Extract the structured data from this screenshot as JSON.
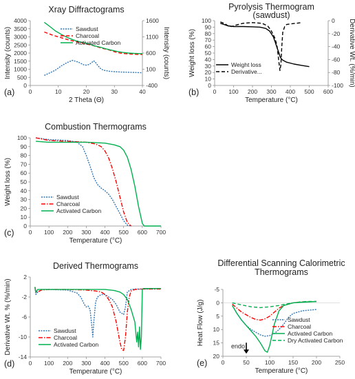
{
  "chart_data": [
    {
      "id": "a",
      "type": "line",
      "panel_label": "(a)",
      "title": "Xray Diffractograms",
      "xlabel": "2 Theta (Θ)",
      "ylabel": "Intensity (counts)",
      "y2label": "Intensity (counts)",
      "xlim": [
        0,
        40
      ],
      "ylim": [
        0,
        4000
      ],
      "y2lim": [
        -400,
        1600
      ],
      "xticks": [
        0,
        10,
        20,
        30,
        40
      ],
      "yticks": [
        0,
        500,
        1000,
        1500,
        2000,
        2500,
        3000,
        3500,
        4000
      ],
      "y2ticks": [
        -400,
        100,
        600,
        1100,
        1600
      ],
      "legend_position": "top-right",
      "series": [
        {
          "name": "Sawdust",
          "axis": "y",
          "color": "#2e75b6",
          "dash": "dotted",
          "x": [
            5,
            7,
            9,
            11,
            13,
            15,
            17,
            19,
            20,
            21,
            22,
            22.5,
            23,
            24,
            25,
            26,
            28,
            30,
            32,
            34,
            36,
            38,
            40
          ],
          "y": [
            620,
            780,
            950,
            1200,
            1400,
            1550,
            1450,
            1280,
            1250,
            1300,
            1420,
            1520,
            1480,
            1250,
            1050,
            950,
            880,
            850,
            830,
            820,
            810,
            800,
            780
          ]
        },
        {
          "name": "Charcoal",
          "axis": "y2",
          "color": "#ff0000",
          "dash": "dashed",
          "x": [
            5,
            8,
            10,
            12,
            14,
            16,
            18,
            20,
            22,
            24,
            26,
            28,
            30,
            32,
            34,
            36,
            38,
            40
          ],
          "y": [
            1250,
            1150,
            1100,
            1050,
            1000,
            960,
            920,
            880,
            840,
            790,
            740,
            700,
            640,
            600,
            580,
            570,
            560,
            560
          ]
        },
        {
          "name": "Activated Carbon",
          "axis": "y2",
          "color": "#00b050",
          "dash": "solid",
          "x": [
            5,
            7,
            9,
            11,
            13,
            15,
            17,
            19,
            21,
            23,
            25,
            27,
            29,
            31,
            33,
            35,
            37,
            40
          ],
          "y": [
            1550,
            1420,
            1280,
            1180,
            1090,
            1020,
            960,
            920,
            880,
            820,
            780,
            730,
            690,
            650,
            620,
            600,
            590,
            580
          ]
        }
      ]
    },
    {
      "id": "b",
      "type": "line",
      "panel_label": "(b)",
      "title": "Pyrolysis Thermogram",
      "title2": "(sawdust)",
      "xlabel": "Temperature (°C)",
      "ylabel": "Weight loss (%)",
      "y2label": "Derivative Wt. (%/min)",
      "xlim": [
        0,
        600
      ],
      "ylim": [
        0,
        100
      ],
      "y2lim": [
        -100,
        0
      ],
      "xticks": [
        0,
        100,
        200,
        300,
        400,
        500,
        600
      ],
      "yticks": [
        0,
        10,
        20,
        30,
        40,
        50,
        60,
        70,
        80,
        90,
        100
      ],
      "y2ticks": [
        -100,
        -80,
        -60,
        -40,
        -20,
        0
      ],
      "legend_position": "bottom-left",
      "series": [
        {
          "name": "Weight loss",
          "axis": "y",
          "color": "#000000",
          "dash": "solid",
          "x": [
            30,
            50,
            70,
            100,
            150,
            200,
            240,
            270,
            290,
            310,
            320,
            330,
            340,
            345,
            350,
            360,
            380,
            420,
            460,
            500
          ],
          "y": [
            96,
            94,
            92,
            91,
            91,
            90.5,
            90,
            88,
            84,
            75,
            67,
            58,
            50,
            45,
            42,
            39,
            36,
            33,
            31,
            29
          ]
        },
        {
          "name": "Derivative...",
          "axis": "y2",
          "color": "#000000",
          "dash": "dashed",
          "x": [
            30,
            50,
            70,
            90,
            110,
            150,
            200,
            250,
            280,
            300,
            320,
            330,
            340,
            345,
            350,
            355,
            360,
            370,
            380,
            400,
            430,
            460
          ],
          "y": [
            -2,
            -4,
            -8,
            -9,
            -7,
            -4,
            -3,
            -4,
            -8,
            -16,
            -28,
            -40,
            -65,
            -77,
            -68,
            -40,
            -18,
            -9,
            -6,
            -5,
            -4,
            -3
          ]
        }
      ]
    },
    {
      "id": "c",
      "type": "line",
      "panel_label": "(c)",
      "title": "Combustion Thermograms",
      "xlabel": "Temperature (°C)",
      "ylabel": "Weight loss (%)",
      "xlim": [
        0,
        700
      ],
      "ylim": [
        0,
        100
      ],
      "xticks": [
        0,
        100,
        200,
        300,
        400,
        500,
        600,
        700
      ],
      "yticks": [
        0,
        10,
        20,
        30,
        40,
        50,
        60,
        70,
        80,
        90,
        100
      ],
      "legend_position": "bottom-left",
      "series": [
        {
          "name": "Sawdust",
          "color": "#2e75b6",
          "dash": "dotted",
          "x": [
            30,
            100,
            200,
            250,
            280,
            300,
            320,
            340,
            360,
            380,
            400,
            420,
            440,
            460,
            480,
            500,
            520,
            540
          ],
          "y": [
            100,
            98,
            97,
            95,
            90,
            80,
            68,
            55,
            47,
            43,
            40,
            36,
            30,
            22,
            14,
            6,
            1,
            0
          ]
        },
        {
          "name": "Charcoal",
          "color": "#ff0000",
          "dash": "dashdot",
          "x": [
            30,
            100,
            200,
            300,
            350,
            380,
            400,
            420,
            440,
            460,
            480,
            500,
            520,
            540
          ],
          "y": [
            100,
            97,
            96,
            95,
            93,
            90,
            85,
            77,
            65,
            50,
            33,
            16,
            4,
            0
          ]
        },
        {
          "name": "Activated Carbon",
          "color": "#00b050",
          "dash": "solid",
          "x": [
            30,
            100,
            200,
            300,
            400,
            450,
            480,
            500,
            520,
            540,
            560,
            580,
            600,
            610,
            700
          ],
          "y": [
            96,
            95,
            95,
            95,
            94,
            92,
            90,
            86,
            78,
            64,
            45,
            22,
            3,
            0,
            0
          ]
        }
      ]
    },
    {
      "id": "d",
      "type": "line",
      "panel_label": "(d)",
      "title": "Derived Thermograms",
      "xlabel": "Temperature (°C)",
      "ylabel": "Derivative Wt. % (%/min)",
      "xlim": [
        0,
        700
      ],
      "ylim": [
        -14,
        2
      ],
      "xticks": [
        0,
        100,
        200,
        300,
        400,
        500,
        600,
        700
      ],
      "yticks": [
        -14,
        -10,
        -6,
        -2,
        2
      ],
      "legend_position": "bottom-left",
      "series": [
        {
          "name": "Sawdust",
          "color": "#2e75b6",
          "dash": "dotted",
          "x": [
            25,
            30,
            40,
            60,
            100,
            200,
            250,
            270,
            290,
            300,
            310,
            320,
            330,
            335,
            340,
            350,
            360,
            380,
            400,
            420,
            440,
            460,
            480,
            500,
            510,
            520,
            540,
            560,
            600,
            650,
            700
          ],
          "y": [
            0,
            -1.5,
            -1,
            -0.5,
            -0.5,
            -0.6,
            -1.2,
            -2,
            -3.5,
            -4,
            -3.8,
            -4.5,
            -8,
            -10,
            -7,
            -3,
            -2,
            -1.5,
            -1.5,
            -2,
            -2.5,
            -3.5,
            -5,
            -5.5,
            -4,
            -1,
            -0.5,
            -0.4,
            -0.4,
            -0.4,
            -0.4
          ]
        },
        {
          "name": "Charcoal",
          "color": "#ff0000",
          "dash": "dashdot",
          "x": [
            25,
            30,
            40,
            60,
            100,
            200,
            300,
            350,
            380,
            400,
            420,
            440,
            460,
            470,
            480,
            490,
            500,
            510,
            520,
            530,
            540,
            560,
            600,
            650,
            700
          ],
          "y": [
            0,
            -1,
            -1,
            -0.6,
            -0.5,
            -0.5,
            -0.6,
            -0.8,
            -1,
            -1.5,
            -2.5,
            -4,
            -7,
            -9,
            -11,
            -12.5,
            -12.7,
            -10,
            -5,
            -2,
            -0.8,
            -0.5,
            -0.4,
            -0.4,
            -0.4
          ]
        },
        {
          "name": "Activated Carbon",
          "color": "#00b050",
          "dash": "solid",
          "x": [
            25,
            30,
            40,
            60,
            100,
            200,
            300,
            400,
            450,
            480,
            500,
            520,
            540,
            560,
            570,
            575,
            580,
            585,
            590,
            595,
            600,
            605,
            610,
            650,
            700
          ],
          "y": [
            0,
            -1,
            -0.5,
            -0.5,
            -0.5,
            -0.5,
            -0.5,
            -0.5,
            -0.7,
            -1,
            -1.5,
            -2.5,
            -4.5,
            -7,
            -11,
            -9,
            -12,
            -8,
            -12.5,
            -10,
            -0.5,
            -0.3,
            -0.3,
            -0.3,
            -0.3
          ]
        }
      ]
    },
    {
      "id": "e",
      "type": "line",
      "panel_label": "(e)",
      "title": "Differential Scanning Calorimetric",
      "title2": "Thermograms",
      "xlabel": "Temperature (°C)",
      "ylabel": "Heat Flow (J/g)",
      "xlim": [
        0,
        250
      ],
      "ylim": [
        20,
        -5
      ],
      "y_inverted": true,
      "xticks": [
        0,
        50,
        100,
        150,
        200,
        250
      ],
      "yticks": [
        -5,
        0,
        5,
        10,
        15,
        20
      ],
      "annotation": "endo",
      "annotation_x": 50,
      "annotation_y": 17.5,
      "legend_position": "bottom-right",
      "series": [
        {
          "name": "Sawdust",
          "color": "#2e75b6",
          "dash": "dotted",
          "x": [
            20,
            30,
            40,
            50,
            60,
            70,
            80,
            90,
            100,
            110,
            120,
            130,
            140,
            150,
            170,
            200
          ],
          "y": [
            1,
            4,
            6.5,
            8.5,
            10,
            11,
            12,
            12.5,
            12.3,
            11.5,
            10,
            8,
            5.5,
            4,
            3,
            2.5
          ]
        },
        {
          "name": "Charcoal",
          "color": "#ff0000",
          "dash": "dashdot",
          "x": [
            20,
            30,
            40,
            50,
            60,
            70,
            80,
            90,
            100,
            110,
            120,
            130,
            150,
            170,
            200
          ],
          "y": [
            0.5,
            2,
            3.5,
            4.5,
            5.5,
            6.2,
            6.5,
            6,
            5,
            3.5,
            2,
            1,
            0,
            -0.3,
            -0.5
          ]
        },
        {
          "name": "Activated Carbon",
          "color": "#00b050",
          "dash": "solid",
          "x": [
            20,
            30,
            40,
            50,
            60,
            70,
            80,
            90,
            95,
            100,
            110,
            120,
            130,
            150,
            200
          ],
          "y": [
            1,
            4,
            6.5,
            8.5,
            10.5,
            12.5,
            15,
            18,
            18.5,
            16,
            8,
            3,
            1,
            0,
            -0.5
          ]
        },
        {
          "name": "Dry Activated Carbon",
          "color": "#00b050",
          "dash": "dashed",
          "x": [
            20,
            40,
            60,
            80,
            100,
            120,
            140,
            160,
            180,
            200
          ],
          "y": [
            0,
            0.8,
            1.5,
            1.8,
            1.5,
            1,
            0.3,
            -0.2,
            -0.5,
            -0.5
          ]
        }
      ]
    }
  ]
}
